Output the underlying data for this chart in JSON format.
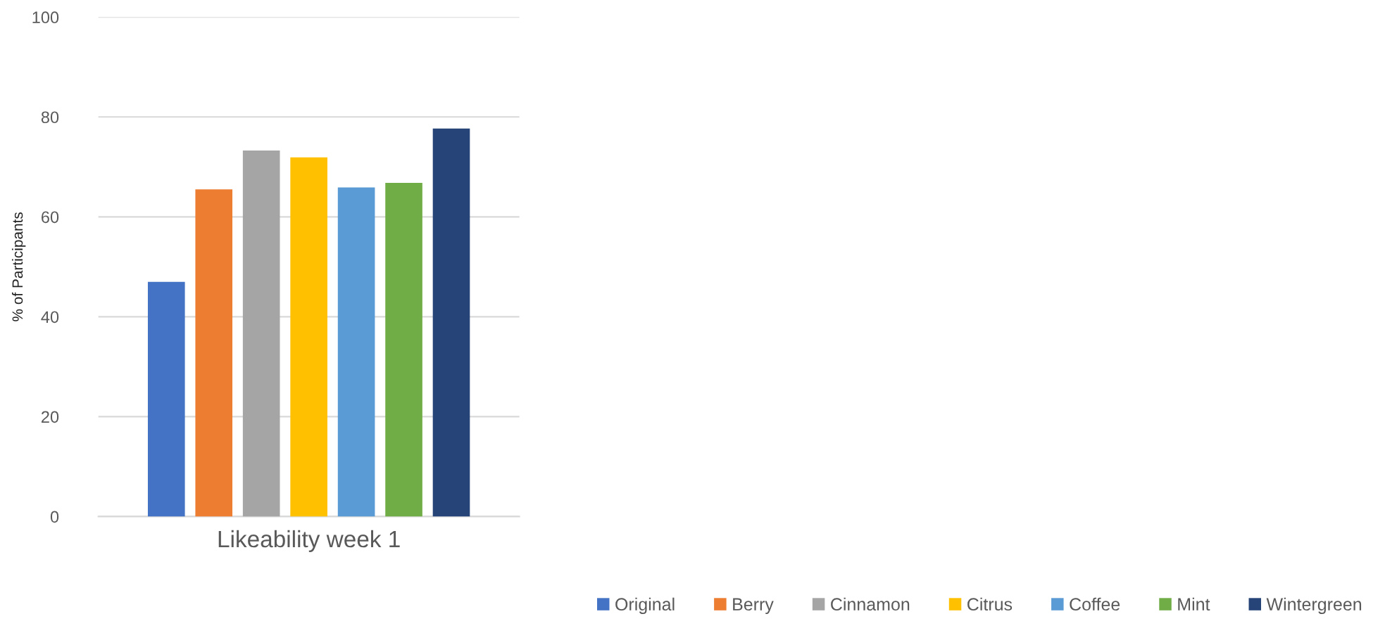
{
  "chart_data": {
    "type": "bar",
    "ylabel": "% of Participants",
    "categories": [
      "Likeability week 1"
    ],
    "series": [
      {
        "name": "Original",
        "color": "#4472c4",
        "values": [
          47
        ]
      },
      {
        "name": "Berry",
        "color": "#ed7d31",
        "values": [
          65.5
        ]
      },
      {
        "name": "Cinnamon",
        "color": "#a5a5a5",
        "values": [
          73.3
        ]
      },
      {
        "name": "Citrus",
        "color": "#ffc000",
        "values": [
          71.9
        ]
      },
      {
        "name": "Coffee",
        "color": "#5b9bd5",
        "values": [
          65.9
        ]
      },
      {
        "name": "Mint",
        "color": "#70ad47",
        "values": [
          66.8
        ]
      },
      {
        "name": "Wintergreen",
        "color": "#264478",
        "values": [
          77.7
        ]
      }
    ],
    "ylim": [
      0,
      100
    ],
    "yticks": [
      0,
      20,
      40,
      60,
      80,
      100
    ],
    "grid": "y",
    "legend": "bottom"
  }
}
